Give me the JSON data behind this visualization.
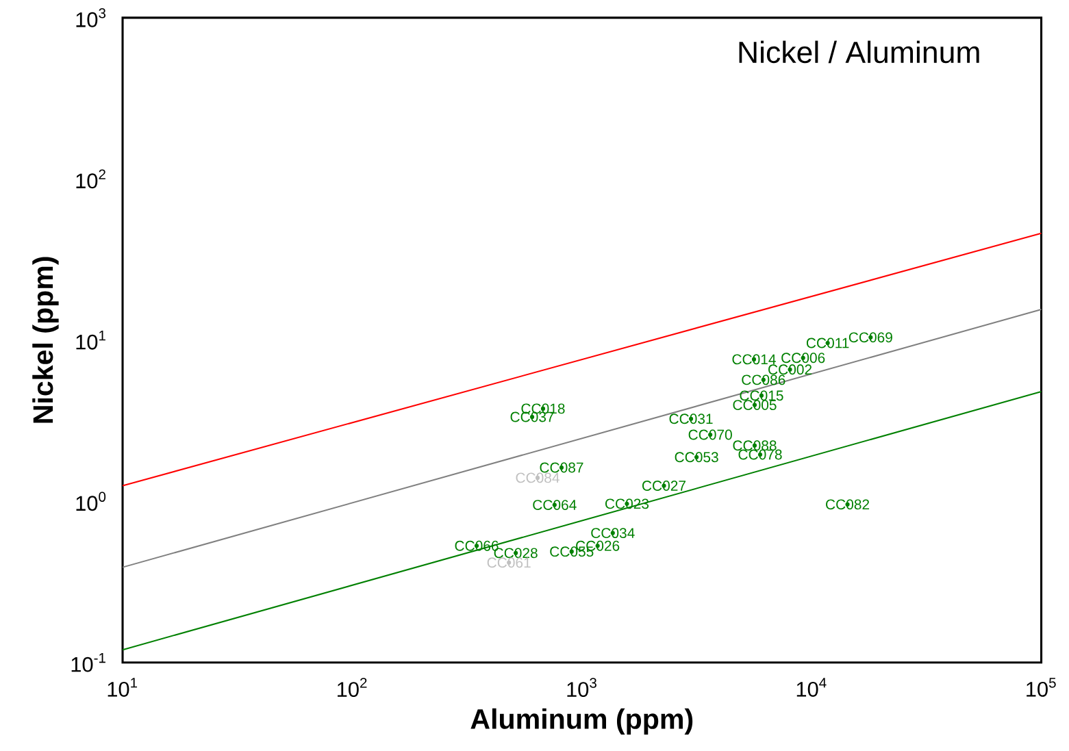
{
  "chart_data": {
    "type": "scatter",
    "title": "Nickel / Aluminum",
    "xlabel": "Aluminum (ppm)",
    "ylabel": "Nickel (ppm)",
    "log": "xy",
    "marker": "none",
    "xlim": [
      10,
      100000
    ],
    "ylim": [
      0.1,
      1000
    ],
    "xticks": [
      {
        "value": 10,
        "label": "10$^{1}$"
      },
      {
        "value": 100,
        "label": "10$^{2}$"
      },
      {
        "value": 1000,
        "label": "10$^{3}$"
      },
      {
        "value": 10000,
        "label": "10$^{4}$"
      },
      {
        "value": 100000,
        "label": "10$^{5}$"
      }
    ],
    "yticks": [
      {
        "value": 0.1,
        "label": "10$^{-1}$"
      },
      {
        "value": 1,
        "label": "10$^{0}$"
      },
      {
        "value": 10,
        "label": "10$^{1}$"
      },
      {
        "value": 100,
        "label": "10$^{2}$"
      },
      {
        "value": 1000,
        "label": "10$^{3}$"
      }
    ],
    "series": [
      {
        "type": "line",
        "color": "#ff0000",
        "x": [
          10,
          100000
        ],
        "values": [
          1.25,
          46
        ]
      },
      {
        "type": "line",
        "color": "#808080",
        "x": [
          10,
          100000
        ],
        "values": [
          0.39,
          15.5
        ]
      },
      {
        "type": "line",
        "color": "#008000",
        "x": [
          10,
          100000
        ],
        "values": [
          0.12,
          4.8
        ]
      },
      {
        "type": "scatter",
        "marker": "circle",
        "color": "#008000",
        "x": [
          677,
          607,
          815,
          760,
          348,
          515,
          5610,
          9180,
          8050,
          6170,
          18070,
          11750,
          5650,
          5970,
          14330,
          1362,
          3155,
          2985,
          3620,
          1170,
          902,
          2275,
          1570,
          6050,
          5650
        ],
        "values": [
          3.76,
          3.34,
          1.62,
          0.95,
          0.53,
          0.478,
          7.6,
          7.76,
          6.57,
          5.67,
          10.4,
          9.6,
          2.22,
          1.95,
          0.957,
          0.636,
          1.88,
          3.25,
          2.59,
          0.53,
          0.488,
          1.25,
          0.966,
          4.53,
          3.96
        ],
        "value_labels": [
          "CC018",
          "CC037",
          "CC087",
          "CC064",
          "CC066",
          "CC028",
          "CC014",
          "CC006",
          "CC002",
          "CC086",
          "CC069",
          "CC011",
          "CC088",
          "CC078",
          "CC082",
          "CC034",
          "CC053",
          "CC031",
          "CC070",
          "CC026",
          "CC055",
          "CC027",
          "CC023",
          "CC015",
          "CC005"
        ]
      },
      {
        "type": "scatter",
        "marker": "circle",
        "color": "#c0c0c0",
        "x": [
          641,
          481
        ],
        "values": [
          1.4,
          0.417
        ],
        "value_labels": [
          "CC084",
          "CC061"
        ]
      }
    ]
  }
}
